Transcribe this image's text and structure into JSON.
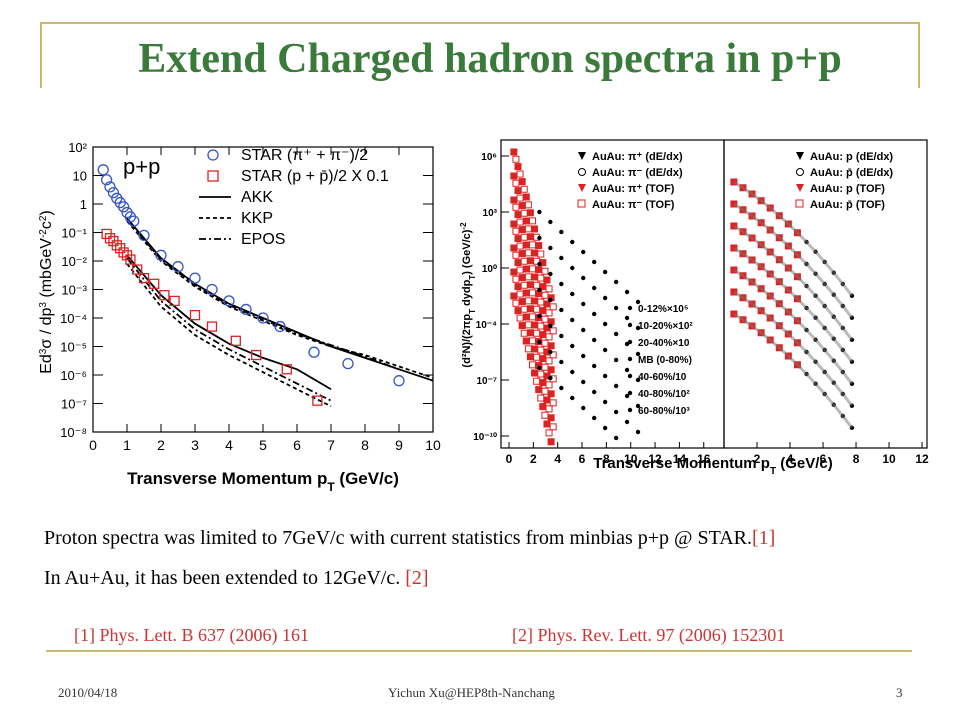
{
  "slide": {
    "title": "Extend Charged hadron spectra in p+p",
    "line1_text": "Proton spectra was limited to 7GeV/c with current statistics from minbias p+p @ STAR.",
    "line1_ref": "[1]",
    "line2_text": "In Au+Au, it has been extended to 12GeV/c. ",
    "line2_ref": "[2]",
    "ref1": "[1] Phys. Lett. B 637 (2006) 161",
    "ref2": "[2] Phys. Rev. Lett. 97 (2006) 152301",
    "footer_date": "2010/04/18",
    "footer_author": "Yichun Xu@HEP8th-Nanchang",
    "footer_page": "3"
  },
  "colors": {
    "title": "#3a7a3a",
    "accent_line": "#c8b870",
    "reference": "#cc3333",
    "blue_marker": "#3355cc",
    "red_marker": "#dd2222"
  },
  "chart_data": [
    {
      "type": "scatter",
      "panel_label": "p+p",
      "xlabel": "Transverse Momentum p_T (GeV/c)",
      "ylabel": "Ed³σ / dp³ (mbGeV⁻²c²)",
      "xlim": [
        0,
        10
      ],
      "ylim_log10": [
        -8,
        2
      ],
      "log_y": true,
      "x_ticks": [
        "0",
        "1",
        "2",
        "3",
        "4",
        "5",
        "6",
        "7",
        "8",
        "9",
        "10"
      ],
      "y_ticks": [
        "10²",
        "10",
        "1",
        "10⁻¹",
        "10⁻²",
        "10⁻³",
        "10⁻⁴",
        "10⁻⁵",
        "10⁻⁶",
        "10⁻⁷",
        "10⁻⁸"
      ],
      "legend_position": "top-right",
      "legend": [
        "STAR (π⁺ + π⁻)/2",
        "STAR (p + p̄)/2 X 0.1",
        "AKK",
        "KKP",
        "EPOS"
      ],
      "series": [
        {
          "name": "STAR (π⁺ + π⁻)/2",
          "marker": "open-circle",
          "x": [
            0.3,
            0.4,
            0.5,
            0.6,
            0.7,
            0.8,
            0.9,
            1.0,
            1.1,
            1.2,
            1.5,
            2.0,
            2.5,
            3.0,
            3.5,
            4.0,
            4.5,
            5.0,
            5.5,
            6.5,
            7.5,
            9.0
          ],
          "log10_y": [
            1.2,
            0.85,
            0.6,
            0.4,
            0.2,
            0.05,
            -0.1,
            -0.3,
            -0.45,
            -0.6,
            -1.1,
            -1.8,
            -2.2,
            -2.6,
            -3.0,
            -3.4,
            -3.7,
            -4.0,
            -4.3,
            -5.2,
            -5.6,
            -6.2
          ]
        },
        {
          "name": "STAR (p + p̄)/2 X 0.1",
          "marker": "open-square",
          "x": [
            0.4,
            0.5,
            0.6,
            0.7,
            0.8,
            0.9,
            1.0,
            1.1,
            1.3,
            1.5,
            1.8,
            2.1,
            2.4,
            3.0,
            3.5,
            4.2,
            4.8,
            5.7,
            6.6
          ],
          "log10_y": [
            -1.05,
            -1.2,
            -1.3,
            -1.45,
            -1.55,
            -1.7,
            -1.8,
            -1.95,
            -2.3,
            -2.6,
            -2.8,
            -3.2,
            -3.4,
            -3.9,
            -4.3,
            -4.8,
            -5.3,
            -5.8,
            -6.9
          ]
        }
      ],
      "curves": [
        {
          "name": "AKK",
          "style": "solid",
          "x": [
            1,
            2,
            3,
            4,
            5,
            6,
            7,
            8,
            9,
            10
          ],
          "log10_y_upper": [
            -0.5,
            -1.9,
            -2.8,
            -3.5,
            -4.0,
            -4.5,
            -5.0,
            -5.4,
            -5.8,
            -6.2
          ],
          "log10_y_lower": [
            -1.8,
            -3.2,
            -4.2,
            -4.9,
            -5.4,
            -5.8,
            -6.5,
            null,
            null,
            null
          ]
        },
        {
          "name": "KKP",
          "style": "dashed",
          "x": [
            1,
            2,
            3,
            4,
            5,
            6,
            7,
            8,
            9,
            10
          ],
          "log10_y_upper": [
            -0.6,
            -2.0,
            -2.9,
            -3.6,
            -4.1,
            -4.6,
            -5.0,
            -5.3,
            -5.7,
            -6.1
          ],
          "log10_y_lower": [
            -2.1,
            -3.6,
            -4.6,
            -5.3,
            -5.9,
            -6.5,
            -7.1,
            null,
            null,
            null
          ]
        },
        {
          "name": "EPOS",
          "style": "dash-dot",
          "x": [
            1,
            2,
            3,
            4,
            5,
            6,
            7,
            8,
            9,
            10
          ],
          "log10_y_upper": [
            -0.55,
            -1.95,
            -2.85,
            -3.55,
            -4.05,
            -4.55,
            -4.95,
            -5.35,
            -5.8,
            null
          ],
          "log10_y_lower": [
            -1.9,
            -3.4,
            -4.4,
            -5.1,
            -5.7,
            -6.3,
            -6.9,
            null,
            null,
            null
          ]
        }
      ]
    },
    {
      "type": "scatter",
      "xlabel": "Transverse Momentum p_T (GeV/c)",
      "ylabel": "(d²N)/(2πp_T dy dp_T) (GeV/c)⁻²",
      "log_y": true,
      "y_ticks": [
        "10⁶",
        "10³",
        "10⁰",
        "10⁻⁴",
        "10⁻⁷",
        "10⁻¹⁰"
      ],
      "left_panel": {
        "x_ticks": [
          "0",
          "2",
          "4",
          "6",
          "8",
          "10",
          "12",
          "14",
          "16"
        ],
        "legend": [
          "AuAu: π⁺ (dE/dx)",
          "AuAu: π⁻ (dE/dx)",
          "AuAu: π⁺ (TOF)",
          "AuAu: π⁻ (TOF)"
        ],
        "centrality_labels": [
          "0-12%×10⁵",
          "10-20%×10²",
          "20-40%×10",
          "MB (0-80%)",
          "40-60%/10",
          "40-80%/10²",
          "60-80%/10³"
        ]
      },
      "right_panel": {
        "x_ticks": [
          "2",
          "4",
          "6",
          "8",
          "10",
          "12"
        ],
        "legend": [
          "AuAu: p (dE/dx)",
          "AuAu: p̄ (dE/dx)",
          "AuAu: p (TOF)",
          "AuAu: p̄ (TOF)"
        ]
      }
    }
  ]
}
